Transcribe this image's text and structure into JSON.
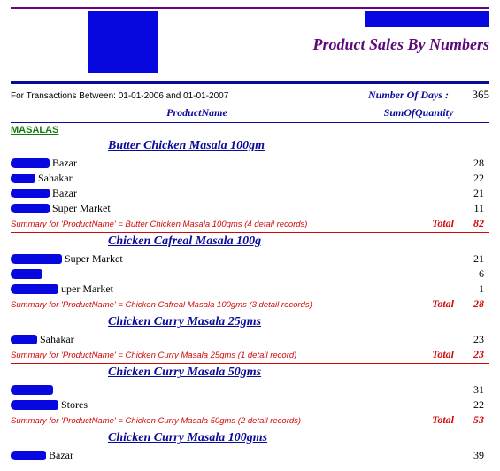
{
  "header": {
    "title": "Product Sales By Numbers",
    "transactions_label": "For Transactions Between: 01-01-2006 and 01-01-2007",
    "days_label": "Number Of Days :",
    "days_value": "365",
    "col_product": "ProductName",
    "col_qty": "SumOfQuantity"
  },
  "category": "MASALAS",
  "total_label": "Total",
  "groups": [
    {
      "product": "Butter Chicken Masala 100gm",
      "rows": [
        {
          "redact_w": 44,
          "label": "Bazar",
          "qty": "28"
        },
        {
          "redact_w": 28,
          "label": "Sahakar",
          "qty": "22"
        },
        {
          "redact_w": 44,
          "label": "Bazar",
          "qty": "21"
        },
        {
          "redact_w": 44,
          "label": "Super Market",
          "qty": "11"
        }
      ],
      "summary": "Summary for 'ProductName' =  Butter Chicken Masala 100gms (4 detail records)",
      "total": "82"
    },
    {
      "product": "Chicken Cafreal Masala 100g",
      "rows": [
        {
          "redact_w": 58,
          "label": "Super Market",
          "qty": "21"
        },
        {
          "redact_w": 36,
          "label": "",
          "qty": "6"
        },
        {
          "redact_w": 54,
          "label": "uper Market",
          "qty": "1"
        }
      ],
      "summary": "Summary for 'ProductName' =  Chicken Cafreal Masala 100gms (3 detail records)",
      "total": "28"
    },
    {
      "product": "Chicken Curry Masala   25gms",
      "rows": [
        {
          "redact_w": 30,
          "label": "Sahakar",
          "qty": "23"
        }
      ],
      "summary": "Summary for 'ProductName' =  Chicken Curry Masala   25gms (1 detail record)",
      "total": "23"
    },
    {
      "product": "Chicken Curry Masala   50gms",
      "rows": [
        {
          "redact_w": 48,
          "label": "",
          "qty": "31"
        },
        {
          "redact_w": 54,
          "label": "Stores",
          "qty": "22"
        }
      ],
      "summary": "Summary for 'ProductName' =  Chicken Curry Masala   50gms (2 detail records)",
      "total": "53"
    },
    {
      "product": "Chicken Curry Masala 100gms",
      "rows": [
        {
          "redact_w": 40,
          "label": "Bazar",
          "qty": "39"
        }
      ],
      "summary": "",
      "total": ""
    }
  ]
}
